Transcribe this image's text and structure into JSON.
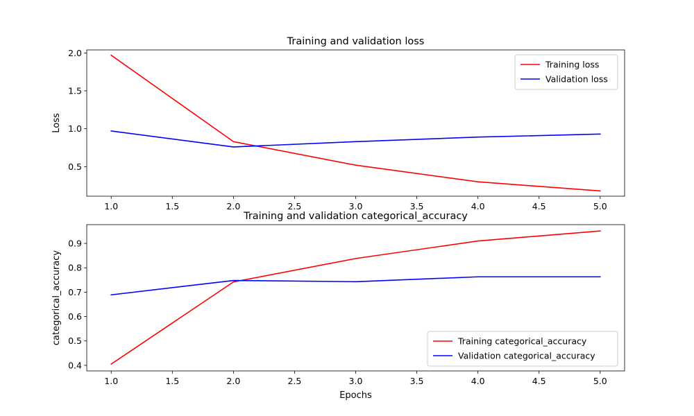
{
  "chart_data": [
    {
      "type": "line",
      "title": "Training and validation loss",
      "xlabel": "",
      "ylabel": "Loss",
      "xlim": [
        0.8,
        5.2
      ],
      "ylim": [
        0.11,
        2.04
      ],
      "xticks": [
        1.0,
        1.5,
        2.0,
        2.5,
        3.0,
        3.5,
        4.0,
        4.5,
        5.0
      ],
      "xtick_labels": [
        "1.0",
        "1.5",
        "2.0",
        "2.5",
        "3.0",
        "3.5",
        "4.0",
        "4.5",
        "5.0"
      ],
      "yticks": [
        0.5,
        1.0,
        1.5,
        2.0
      ],
      "ytick_labels": [
        "0.5",
        "1.0",
        "1.5",
        "2.0"
      ],
      "grid": false,
      "legend_position": "top-right",
      "x": [
        1,
        2,
        3,
        4,
        5
      ],
      "series": [
        {
          "name": "Training loss",
          "color": "#ff0000",
          "values": [
            1.97,
            0.83,
            0.52,
            0.3,
            0.18
          ]
        },
        {
          "name": "Validation loss",
          "color": "#0000ff",
          "values": [
            0.97,
            0.76,
            0.83,
            0.89,
            0.93
          ]
        }
      ]
    },
    {
      "type": "line",
      "title": "Training and validation categorical_accuracy",
      "xlabel": "Epochs",
      "ylabel": "categorical_accuracy",
      "xlim": [
        0.8,
        5.2
      ],
      "ylim": [
        0.377,
        0.977
      ],
      "xticks": [
        1.0,
        1.5,
        2.0,
        2.5,
        3.0,
        3.5,
        4.0,
        4.5,
        5.0
      ],
      "xtick_labels": [
        "1.0",
        "1.5",
        "2.0",
        "2.5",
        "3.0",
        "3.5",
        "4.0",
        "4.5",
        "5.0"
      ],
      "yticks": [
        0.4,
        0.5,
        0.6,
        0.7,
        0.8,
        0.9
      ],
      "ytick_labels": [
        "0.4",
        "0.5",
        "0.6",
        "0.7",
        "0.8",
        "0.9"
      ],
      "grid": false,
      "legend_position": "bottom-right",
      "x": [
        1,
        2,
        3,
        4,
        5
      ],
      "series": [
        {
          "name": "Training categorical_accuracy",
          "color": "#ff0000",
          "values": [
            0.405,
            0.742,
            0.838,
            0.91,
            0.951
          ]
        },
        {
          "name": "Validation categorical_accuracy",
          "color": "#0000ff",
          "values": [
            0.689,
            0.748,
            0.743,
            0.763,
            0.763
          ]
        }
      ]
    }
  ]
}
